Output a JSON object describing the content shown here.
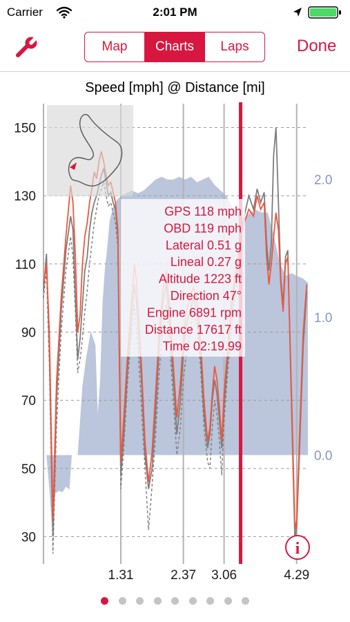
{
  "status_bar": {
    "carrier": "Carrier",
    "time": "2:01 PM"
  },
  "nav": {
    "tabs": [
      {
        "label": "Map",
        "active": false
      },
      {
        "label": "Charts",
        "active": true
      },
      {
        "label": "Laps",
        "active": false
      }
    ],
    "done_label": "Done"
  },
  "colors": {
    "accent": "#d7173f",
    "altitude_fill": "#b4bfd8",
    "axis_right": "#8695bd",
    "gps_line": "#f2553b",
    "obd_line": "#7d7d7d"
  },
  "page_indicator": {
    "count": 9,
    "active_index": 0
  },
  "chart_data": {
    "type": "line",
    "title": "Speed [mph] @ Distance [mi]",
    "xlabel": "",
    "ylabel": "",
    "grid": true,
    "xlim": [
      0,
      4.48
    ],
    "ylim": [
      22,
      157
    ],
    "y2lim": [
      -0.79,
      2.55
    ],
    "yticks": [
      30,
      50,
      70,
      90,
      110,
      130,
      150
    ],
    "y2ticks": [
      {
        "value": 0.0,
        "label": "0.0"
      },
      {
        "value": 1.0,
        "label": "1.0"
      },
      {
        "value": 2.0,
        "label": "2.0"
      }
    ],
    "xticks": [
      {
        "value": 1.31,
        "label": "1.31"
      },
      {
        "value": 2.37,
        "label": "2.37"
      },
      {
        "value": 3.06,
        "label": "3.06"
      },
      {
        "value": 4.29,
        "label": "4.29"
      }
    ],
    "cursor_x": 3.34,
    "readout": [
      "GPS 118 mph",
      "OBD 119 mph",
      "Lateral 0.51 g",
      "Lineal 0.27 g",
      "Altitude 1223 ft",
      "Direction 47°",
      "Engine 6891 rpm",
      "Distance 17617 ft",
      "Time 02:19.99"
    ],
    "series": [
      {
        "name": "GPS",
        "role": "gps",
        "x": [
          0,
          0.05,
          0.1,
          0.16,
          0.22,
          0.3,
          0.38,
          0.46,
          0.5,
          0.54,
          0.58,
          0.62,
          0.66,
          0.7,
          0.74,
          0.78,
          0.82,
          0.86,
          0.9,
          0.94,
          0.98,
          1.02,
          1.06,
          1.1,
          1.14,
          1.18,
          1.22,
          1.26,
          1.31,
          1.36,
          1.42,
          1.48,
          1.54,
          1.58,
          1.62,
          1.66,
          1.72,
          1.78,
          1.84,
          1.9,
          1.96,
          2.02,
          2.08,
          2.14,
          2.2,
          2.26,
          2.32,
          2.37,
          2.42,
          2.48,
          2.54,
          2.6,
          2.66,
          2.72,
          2.78,
          2.82,
          2.86,
          2.9,
          2.94,
          2.98,
          3.02,
          3.06,
          3.12,
          3.18,
          3.24,
          3.3,
          3.34,
          3.4,
          3.48,
          3.56,
          3.62,
          3.68,
          3.74,
          3.78,
          3.82,
          3.86,
          3.9,
          3.94,
          3.98,
          4.02,
          4.06,
          4.1,
          4.14,
          4.18,
          4.22,
          4.26,
          4.29,
          4.34,
          4.4,
          4.46
        ],
        "values": [
          104,
          110,
          90,
          35,
          75,
          100,
          118,
          133,
          128,
          112,
          90,
          95,
          110,
          118,
          122,
          128,
          132,
          137,
          135,
          140,
          143,
          140,
          136,
          133,
          134,
          131,
          128,
          120,
          52,
          65,
          82,
          96,
          110,
          104,
          92,
          80,
          58,
          46,
          55,
          72,
          90,
          102,
          108,
          96,
          80,
          65,
          75,
          88,
          96,
          100,
          103,
          100,
          88,
          70,
          58,
          62,
          72,
          80,
          76,
          68,
          58,
          72,
          85,
          98,
          106,
          112,
          118,
          122,
          126,
          124,
          130,
          126,
          128,
          112,
          104,
          110,
          118,
          125,
          120,
          104,
          96,
          110,
          112,
          86,
          60,
          32,
          35,
          60,
          90,
          104
        ]
      },
      {
        "name": "OBD",
        "role": "obd",
        "x": [
          0,
          0.05,
          0.1,
          0.16,
          0.22,
          0.3,
          0.38,
          0.46,
          0.5,
          0.54,
          0.58,
          0.62,
          0.66,
          0.7,
          0.74,
          0.78,
          0.82,
          0.86,
          0.9,
          0.94,
          0.98,
          1.02,
          1.06,
          1.1,
          1.14,
          1.18,
          1.22,
          1.26,
          1.31,
          1.36,
          1.42,
          1.48,
          1.54,
          1.58,
          1.62,
          1.66,
          1.72,
          1.78,
          1.84,
          1.9,
          1.96,
          2.02,
          2.08,
          2.14,
          2.2,
          2.26,
          2.32,
          2.37,
          2.42,
          2.48,
          2.54,
          2.6,
          2.66,
          2.72,
          2.78,
          2.82,
          2.86,
          2.9,
          2.94,
          2.98,
          3.02,
          3.06,
          3.12,
          3.18,
          3.24,
          3.3,
          3.34,
          3.4,
          3.48,
          3.56,
          3.62,
          3.68,
          3.74,
          3.78,
          3.82,
          3.86,
          3.9,
          3.94,
          3.98,
          4.02,
          4.06,
          4.1,
          4.14,
          4.18,
          4.22,
          4.26,
          4.29,
          4.34,
          4.4,
          4.46
        ],
        "values": [
          102,
          113,
          85,
          30,
          70,
          96,
          114,
          124,
          120,
          100,
          82,
          88,
          98,
          108,
          112,
          120,
          125,
          128,
          130,
          133,
          136,
          138,
          134,
          130,
          131,
          128,
          126,
          118,
          48,
          60,
          78,
          92,
          104,
          98,
          88,
          76,
          54,
          44,
          50,
          66,
          86,
          98,
          104,
          92,
          76,
          60,
          70,
          84,
          92,
          96,
          100,
          96,
          84,
          66,
          56,
          60,
          70,
          76,
          72,
          64,
          56,
          68,
          82,
          95,
          104,
          110,
          119,
          124,
          130,
          126,
          132,
          128,
          131,
          116,
          108,
          116,
          142,
          150,
          128,
          106,
          98,
          112,
          114,
          84,
          56,
          29,
          33,
          56,
          86,
          102
        ]
      },
      {
        "name": "Lap",
        "role": "lap",
        "x": [
          0,
          0.05,
          0.1,
          0.16,
          0.22,
          0.3,
          0.38,
          0.46,
          0.5,
          0.54,
          0.58,
          0.62,
          0.66,
          0.7,
          0.74,
          0.78,
          0.82,
          0.86,
          0.9,
          0.94,
          0.98,
          1.02,
          1.06,
          1.1,
          1.14,
          1.18,
          1.22,
          1.26,
          1.31,
          1.36,
          1.42,
          1.48,
          1.54,
          1.58,
          1.62,
          1.66,
          1.72,
          1.78,
          1.84,
          1.9,
          1.96,
          2.02,
          2.08,
          2.14,
          2.2,
          2.26,
          2.32,
          2.37,
          2.42,
          2.48,
          2.54,
          2.6,
          2.66,
          2.72,
          2.78,
          2.82,
          2.86,
          2.9,
          2.94,
          2.98,
          3.02,
          3.06,
          3.12,
          3.18,
          3.24,
          3.3,
          3.34
        ],
        "values": [
          100,
          108,
          80,
          25,
          62,
          90,
          108,
          118,
          112,
          96,
          78,
          82,
          88,
          96,
          102,
          110,
          116,
          122,
          126,
          130,
          132,
          134,
          130,
          127,
          128,
          125,
          122,
          115,
          44,
          56,
          74,
          88,
          98,
          90,
          80,
          68,
          50,
          32,
          45,
          60,
          78,
          92,
          98,
          86,
          70,
          54,
          62,
          76,
          84,
          90,
          96,
          92,
          80,
          62,
          52,
          50,
          62,
          70,
          66,
          58,
          48,
          64,
          78,
          90,
          100,
          106,
          112
        ]
      },
      {
        "name": "Altitude",
        "role": "altitude",
        "x": [
          0,
          0.05,
          0.1,
          0.14,
          0.2,
          0.26,
          0.32,
          0.38,
          0.44,
          0.48,
          0.52,
          0.58,
          0.62,
          0.66,
          0.72,
          0.8,
          0.88,
          0.92,
          0.96,
          1.0,
          1.04,
          1.08,
          1.12,
          1.18,
          1.24,
          1.31,
          1.4,
          1.5,
          1.6,
          1.7,
          1.8,
          1.9,
          2.0,
          2.1,
          2.2,
          2.3,
          2.4,
          2.5,
          2.6,
          2.7,
          2.8,
          2.9,
          3.0,
          3.1,
          3.2,
          3.3,
          3.4,
          3.5,
          3.6,
          3.7,
          3.8,
          3.9,
          4.0,
          4.1,
          4.2,
          4.3,
          4.4,
          4.48
        ],
        "values": [
          0.0,
          0.0,
          -0.25,
          -0.5,
          -0.28,
          -0.26,
          -0.27,
          -0.23,
          -0.25,
          0.0,
          0.0,
          0.0,
          0.25,
          0.5,
          0.7,
          0.9,
          0.8,
          0.3,
          0.55,
          1.1,
          1.35,
          1.5,
          1.7,
          1.8,
          1.85,
          1.88,
          1.9,
          1.92,
          1.9,
          1.92,
          1.96,
          2.0,
          2.02,
          2.0,
          2.0,
          2.02,
          2.0,
          2.02,
          1.98,
          2.0,
          2.02,
          1.96,
          1.92,
          1.88,
          1.8,
          1.76,
          1.72,
          1.76,
          1.78,
          1.76,
          1.76,
          1.6,
          1.4,
          1.3,
          1.32,
          1.3,
          1.28,
          1.25
        ]
      }
    ]
  }
}
